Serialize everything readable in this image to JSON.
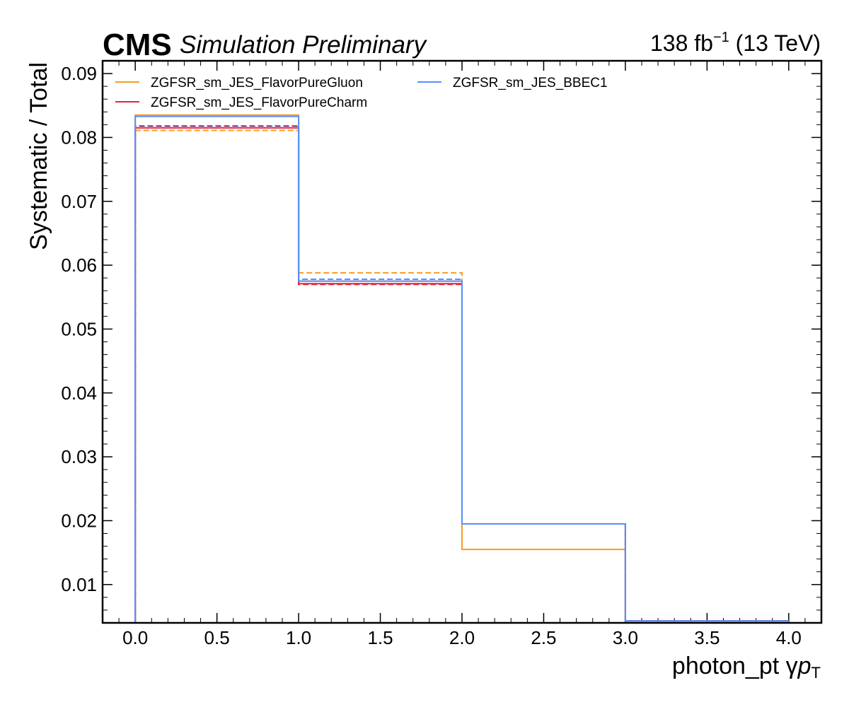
{
  "header": {
    "experiment": "CMS",
    "extra": "Simulation Preliminary",
    "lumi_prefix": "138 fb",
    "lumi_exponent": "−1",
    "lumi_suffix": " (13 TeV)"
  },
  "chart_data": {
    "type": "line",
    "xlabel": "photon_pt   γpT",
    "xlabel_main": "photon_pt   γ",
    "xlabel_p": "p",
    "xlabel_sub": "T",
    "ylabel": "Systematic / Total",
    "xlim": [
      -0.2,
      4.2
    ],
    "ylim": [
      0.004,
      0.092
    ],
    "xticks": [
      0.0,
      0.5,
      1.0,
      1.5,
      2.0,
      2.5,
      3.0,
      3.5,
      4.0
    ],
    "xtick_labels": [
      "0.0",
      "0.5",
      "1.0",
      "1.5",
      "2.0",
      "2.5",
      "3.0",
      "3.5",
      "4.0"
    ],
    "yticks": [
      0.01,
      0.02,
      0.03,
      0.04,
      0.05,
      0.06,
      0.07,
      0.08,
      0.09
    ],
    "ytick_labels": [
      "0.01",
      "0.02",
      "0.03",
      "0.04",
      "0.05",
      "0.06",
      "0.07",
      "0.08",
      "0.09"
    ],
    "bin_edges": [
      0,
      1,
      2,
      3,
      4
    ],
    "legend_placement": "top-left",
    "series": [
      {
        "name": "ZGFSR_sm_JES_FlavorPureGluon",
        "color": "#f89c20",
        "style": "solid",
        "values": [
          0.0835,
          0.0575,
          0.0155,
          0.0043
        ]
      },
      {
        "name": "",
        "color": "#f89c20",
        "style": "dashed",
        "values": [
          0.0811,
          0.0588,
          0.0195,
          0.0043
        ]
      },
      {
        "name": "ZGFSR_sm_JES_FlavorPureCharm",
        "color": "#e42536",
        "style": "solid",
        "values": [
          0.0815,
          0.0571,
          0.0195,
          0.0043
        ]
      },
      {
        "name": "",
        "color": "#e42536",
        "style": "dashed",
        "values": [
          0.0818,
          0.057,
          0.0195,
          0.0043
        ]
      },
      {
        "name": "ZGFSR_sm_JES_BBEC1",
        "color": "#5790fc",
        "style": "solid",
        "values": [
          0.0833,
          0.0575,
          0.0195,
          0.0043
        ]
      },
      {
        "name": "",
        "color": "#5790fc",
        "style": "dashed",
        "values": [
          0.0816,
          0.0578,
          0.0195,
          0.0043
        ]
      }
    ]
  }
}
